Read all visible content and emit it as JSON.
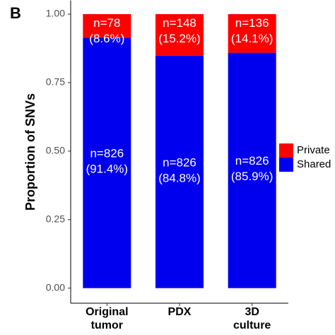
{
  "chart_data": {
    "type": "stacked_bar",
    "panel_label": "B",
    "ylabel": "Proportion of SNVs",
    "categories": [
      "Original tumor",
      "PDX",
      "3D culture"
    ],
    "series": [
      {
        "name": "Shared",
        "color": "#0000ee",
        "values": [
          0.914,
          0.848,
          0.859
        ],
        "value_labels": [
          "n=826 (91.4%)",
          "n=826 (84.8%)",
          "n=826 (85.9%)"
        ]
      },
      {
        "name": "Private",
        "color": "#ff0000",
        "values": [
          0.086,
          0.152,
          0.141
        ],
        "value_labels": [
          "n=78 (8.6%)",
          "n=148 (15.2%)",
          "n=136 (14.1%)"
        ]
      }
    ],
    "ylim": [
      -0.055,
      1.05
    ],
    "yticks": [
      {
        "value": 0,
        "label": "0.00"
      },
      {
        "value": 0.25,
        "label": "0.25"
      },
      {
        "value": 0.5,
        "label": "0.50"
      },
      {
        "value": 0.75,
        "label": "0.75"
      },
      {
        "value": 1,
        "label": "1.00"
      }
    ],
    "legend": "right"
  }
}
